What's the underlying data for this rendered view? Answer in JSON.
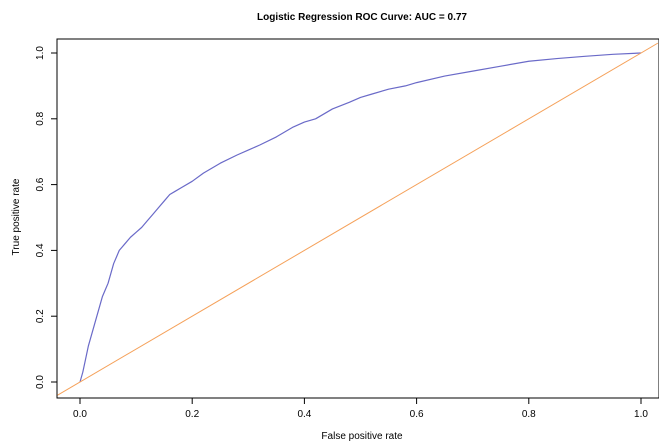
{
  "chart_data": {
    "type": "line",
    "title": "Logistic Regression ROC Curve: AUC = 0.77",
    "xlabel": "False positive rate",
    "ylabel": "True positive rate",
    "xlim": [
      0,
      1
    ],
    "ylim": [
      0,
      1
    ],
    "xticks": [
      "0.0",
      "0.2",
      "0.4",
      "0.6",
      "0.8",
      "1.0"
    ],
    "yticks": [
      "0.0",
      "0.2",
      "0.4",
      "0.6",
      "0.8",
      "1.0"
    ],
    "grid": false,
    "series": [
      {
        "color": "#6a6ac8",
        "x": [
          0,
          0.005,
          0.01,
          0.015,
          0.02,
          0.025,
          0.03,
          0.035,
          0.04,
          0.045,
          0.05,
          0.055,
          0.06,
          0.065,
          0.07,
          0.075,
          0.08,
          0.09,
          0.1,
          0.11,
          0.12,
          0.13,
          0.14,
          0.15,
          0.16,
          0.17,
          0.18,
          0.2,
          0.22,
          0.25,
          0.28,
          0.3,
          0.32,
          0.35,
          0.38,
          0.4,
          0.42,
          0.45,
          0.48,
          0.5,
          0.52,
          0.55,
          0.58,
          0.6,
          0.65,
          0.7,
          0.75,
          0.8,
          0.85,
          0.9,
          0.95,
          1.0
        ],
        "y": [
          0,
          0.03,
          0.07,
          0.11,
          0.14,
          0.17,
          0.2,
          0.23,
          0.26,
          0.28,
          0.3,
          0.33,
          0.36,
          0.38,
          0.4,
          0.41,
          0.42,
          0.44,
          0.455,
          0.47,
          0.49,
          0.51,
          0.53,
          0.55,
          0.57,
          0.58,
          0.59,
          0.61,
          0.635,
          0.665,
          0.69,
          0.705,
          0.72,
          0.745,
          0.775,
          0.79,
          0.8,
          0.83,
          0.85,
          0.865,
          0.875,
          0.89,
          0.9,
          0.91,
          0.93,
          0.945,
          0.96,
          0.975,
          0.983,
          0.99,
          0.996,
          1.0
        ]
      },
      {
        "color": "#f5a15a",
        "x": [
          -0.04,
          1.03
        ],
        "y": [
          -0.04,
          1.03
        ]
      }
    ]
  }
}
